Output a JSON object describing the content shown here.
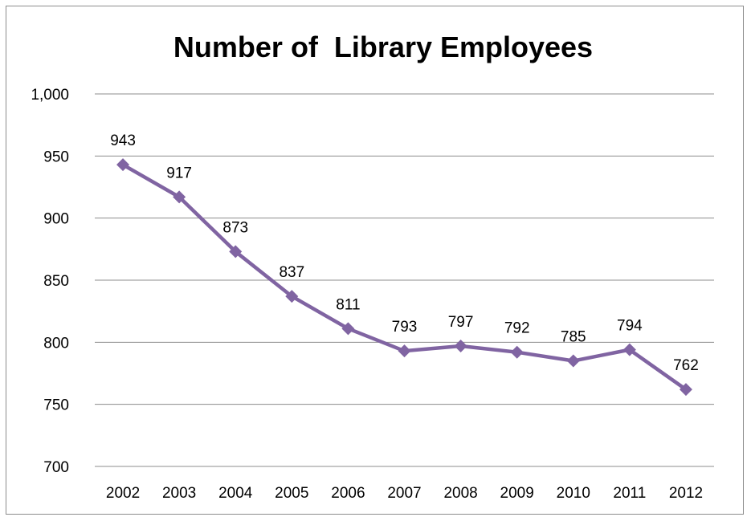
{
  "chart_data": {
    "type": "line",
    "title": "Number of  Library Employees",
    "xlabel": "",
    "ylabel": "",
    "categories": [
      "2002",
      "2003",
      "2004",
      "2005",
      "2006",
      "2007",
      "2008",
      "2009",
      "2010",
      "2011",
      "2012"
    ],
    "series": [
      {
        "values": [
          943,
          917,
          873,
          837,
          811,
          793,
          797,
          792,
          785,
          794,
          762
        ]
      }
    ],
    "data_labels": [
      "943",
      "917",
      "873",
      "837",
      "811",
      "793",
      "797",
      "792",
      "785",
      "794",
      "762"
    ],
    "ylim": [
      700,
      1000
    ],
    "yticks": [
      700,
      750,
      800,
      850,
      900,
      950,
      1000
    ],
    "ytick_labels": [
      "700",
      "750",
      "800",
      "850",
      "900",
      "950",
      "1,000"
    ],
    "grid": true,
    "legend": "none",
    "line_color": "#8064a2"
  }
}
